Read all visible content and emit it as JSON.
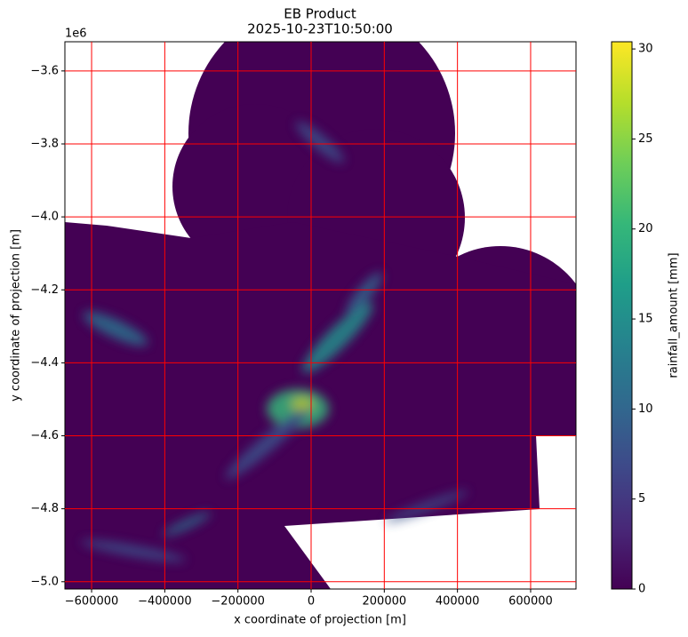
{
  "chart_data": {
    "type": "heatmap",
    "title": "EB Product",
    "subtitle": "2025-10-23T10:50:00",
    "x_label": "x coordinate of projection [m]",
    "y_label": "y coordinate of projection [m]",
    "y_offset_label": "1e6",
    "xlim": [
      -673000,
      724000
    ],
    "xticks": [
      {
        "value": -600000,
        "label": "−600000"
      },
      {
        "value": -400000,
        "label": "−400000"
      },
      {
        "value": -200000,
        "label": "−200000"
      },
      0,
      200000,
      400000,
      600000
    ],
    "ylim": [
      -5020000,
      -3520000
    ],
    "yticks": [
      {
        "value": -3600000,
        "label": "−3.6"
      },
      {
        "value": -3800000,
        "label": "−3.8"
      },
      {
        "value": -4000000,
        "label": "−4.0"
      },
      {
        "value": -4200000,
        "label": "−4.2"
      },
      {
        "value": -4400000,
        "label": "−4.4"
      },
      {
        "value": -4600000,
        "label": "−4.6"
      },
      {
        "value": -4800000,
        "label": "−4.8"
      },
      {
        "value": -5000000,
        "label": "−5.0"
      }
    ],
    "grid": true,
    "grid_color": "red",
    "colorbar": {
      "label": "rainfall_amount [mm]",
      "colormap": "viridis",
      "clim": [
        0,
        30.4
      ],
      "ticks": [
        0,
        5,
        10,
        15,
        20,
        25,
        30
      ]
    }
  }
}
